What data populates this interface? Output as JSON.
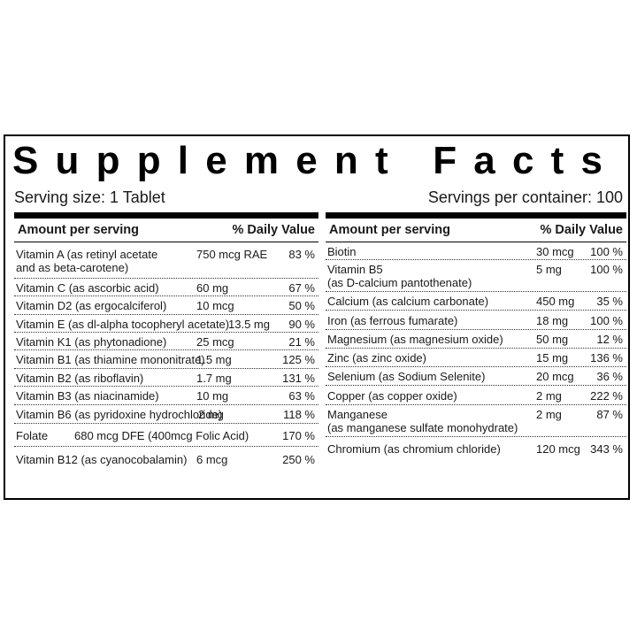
{
  "label": {
    "title": "Supplement Facts",
    "serving_size": "Serving size: 1 Tablet",
    "servings_per_container": "Servings per container: 100"
  },
  "columns": [
    {
      "header_amount": "Amount per serving",
      "header_dv": "% Daily Value",
      "rows": [
        {
          "name_lines": [
            "Vitamin A (as retinyl acetate",
            "and as beta-carotene)"
          ],
          "amount": "750 mcg RAE",
          "dv": "83 %"
        },
        {
          "name_lines": [
            "Vitamin C (as ascorbic acid)"
          ],
          "amount": "60 mg",
          "dv": "67 %"
        },
        {
          "name_lines": [
            "Vitamin D2 (as ergocalciferol)"
          ],
          "amount": "10 mcg",
          "dv": "50 %"
        },
        {
          "name_lines": [
            "Vitamin E (as dl-alpha tocopheryl acetate)"
          ],
          "amount": "13.5 mg",
          "dv": "90 %"
        },
        {
          "name_lines": [
            "Vitamin K1 (as phytonadione)"
          ],
          "amount": "25 mcg",
          "dv": "21 %"
        },
        {
          "name_lines": [
            "Vitamin B1 (as thiamine mononitrate)"
          ],
          "amount": "1.5 mg",
          "dv": "125 %"
        },
        {
          "name_lines": [
            "Vitamin B2 (as riboflavin)"
          ],
          "amount": "1.7 mg",
          "dv": "131 %"
        },
        {
          "name_lines": [
            "Vitamin B3 (as niacinamide)"
          ],
          "amount": "10 mg",
          "dv": "63 %"
        },
        {
          "name_lines": [
            "Vitamin B6 (as pyridoxine hydrochloride)"
          ],
          "amount": "2 mg",
          "dv": "118 %"
        },
        {
          "name_lines": [
            "Folate"
          ],
          "amount": "680 mcg DFE (400mcg Folic Acid)",
          "dv": "170 %"
        },
        {
          "name_lines": [
            "Vitamin B12 (as cyanocobalamin)"
          ],
          "amount": "6 mcg",
          "dv": "250 %"
        }
      ]
    },
    {
      "header_amount": "Amount per serving",
      "header_dv": "% Daily Value",
      "rows": [
        {
          "name_lines": [
            "Biotin"
          ],
          "amount": "30 mcg",
          "dv": "100 %"
        },
        {
          "name_lines": [
            "Vitamin B5",
            "(as D-calcium pantothenate)"
          ],
          "amount": "5 mg",
          "dv": "100 %"
        },
        {
          "name_lines": [
            "Calcium (as calcium carbonate)"
          ],
          "amount": "450 mg",
          "dv": "35 %"
        },
        {
          "name_lines": [
            "Iron (as ferrous fumarate)"
          ],
          "amount": "18 mg",
          "dv": "100 %"
        },
        {
          "name_lines": [
            "Magnesium (as magnesium oxide)"
          ],
          "amount": "50 mg",
          "dv": "12 %"
        },
        {
          "name_lines": [
            "Zinc (as zinc oxide)"
          ],
          "amount": "15 mg",
          "dv": "136 %"
        },
        {
          "name_lines": [
            "Selenium (as Sodium Selenite)"
          ],
          "amount": "20 mcg",
          "dv": "36 %"
        },
        {
          "name_lines": [
            "Copper (as copper oxide)"
          ],
          "amount": "2 mg",
          "dv": "222 %"
        },
        {
          "name_lines": [
            "Manganese",
            "(as manganese sulfate monohydrate)"
          ],
          "amount": "2 mg",
          "dv": "87 %"
        },
        {
          "name_lines": [
            "Chromium (as chromium chloride)"
          ],
          "amount": "120 mcg",
          "dv": "343 %"
        }
      ]
    }
  ]
}
